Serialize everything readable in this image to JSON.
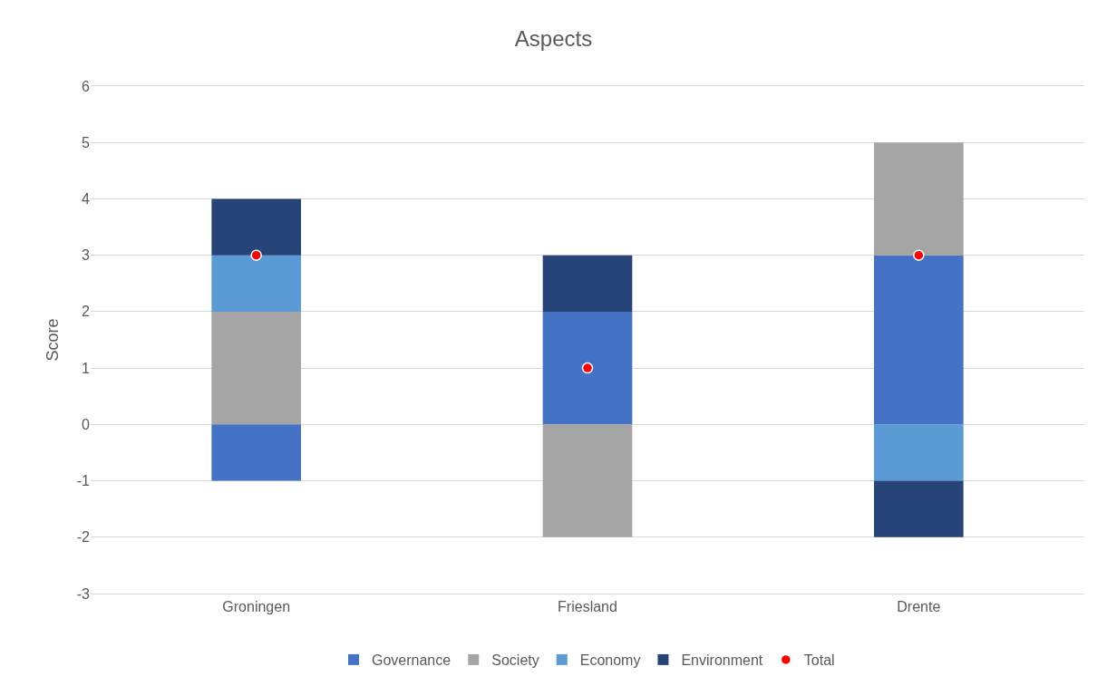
{
  "chart_data": {
    "type": "bar",
    "title": "Aspects",
    "ylabel": "Score",
    "stacked": true,
    "categories": [
      "Groningen",
      "Friesland",
      "Drente"
    ],
    "series": [
      {
        "name": "Governance",
        "color": "#4472c4",
        "values": [
          -1,
          2,
          3
        ]
      },
      {
        "name": "Society",
        "color": "#a5a5a5",
        "values": [
          2,
          -2,
          2
        ]
      },
      {
        "name": "Economy",
        "color": "#5b9bd5",
        "values": [
          1,
          0,
          -1
        ]
      },
      {
        "name": "Environment",
        "color": "#264478",
        "values": [
          1,
          1,
          -1
        ]
      },
      {
        "name": "Total",
        "type": "scatter",
        "color": "#ff0000",
        "marker": "circle",
        "values": [
          3,
          1,
          3
        ]
      }
    ],
    "ylim": [
      -3,
      6
    ],
    "yticks": [
      -3,
      -2,
      -1,
      0,
      1,
      2,
      3,
      4,
      5,
      6
    ],
    "grid": "y",
    "legend": "bottom"
  }
}
